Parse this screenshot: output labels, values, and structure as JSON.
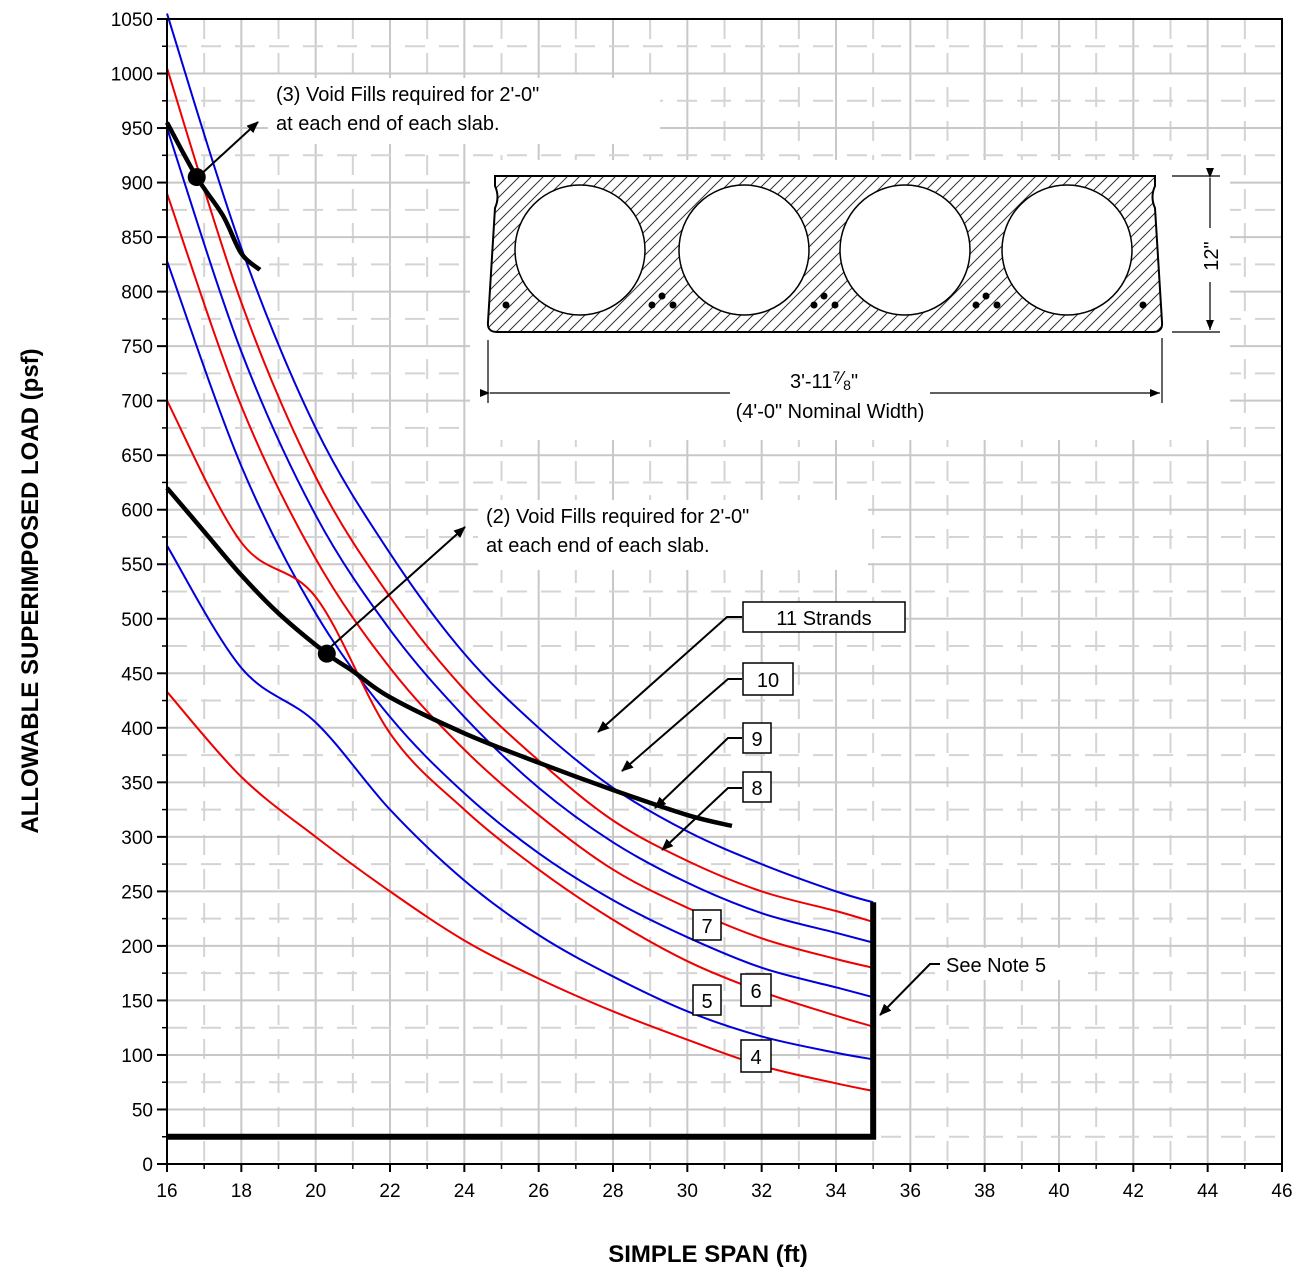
{
  "chart_data": {
    "type": "line",
    "title": "",
    "xlabel": "SIMPLE SPAN (ft)",
    "ylabel": "ALLOWABLE SUPERIMPOSED LOAD (psf)",
    "xlim": [
      16,
      46
    ],
    "ylim": [
      0,
      1050
    ],
    "xticks": [
      16,
      18,
      20,
      22,
      24,
      26,
      28,
      30,
      32,
      34,
      36,
      38,
      40,
      42,
      44,
      46
    ],
    "yticks": [
      0,
      50,
      100,
      150,
      200,
      250,
      300,
      350,
      400,
      450,
      500,
      550,
      600,
      650,
      700,
      750,
      800,
      850,
      900,
      950,
      1000,
      1050
    ],
    "grid": true,
    "colors": {
      "blue": "#0000dd",
      "red": "#ee0000",
      "black": "#000000"
    },
    "series": [
      {
        "name": "11 Strands",
        "color": "#0000dd",
        "label_text": "11 Strands",
        "x": [
          16,
          18,
          20,
          22,
          24,
          26,
          28,
          30,
          32,
          34,
          35
        ],
        "y": [
          1055,
          840,
          675,
          560,
          468,
          400,
          345,
          305,
          275,
          250,
          240
        ]
      },
      {
        "name": "10",
        "color": "#ee0000",
        "label_text": "10",
        "x": [
          16,
          18,
          20,
          22,
          24,
          26,
          28,
          30,
          32,
          34,
          35
        ],
        "y": [
          1005,
          790,
          630,
          520,
          435,
          370,
          315,
          278,
          250,
          232,
          222
        ]
      },
      {
        "name": "9",
        "color": "#0000dd",
        "label_text": "9",
        "x": [
          16,
          18,
          20,
          22,
          24,
          26,
          28,
          30,
          32,
          34,
          35
        ],
        "y": [
          950,
          745,
          595,
          490,
          410,
          345,
          295,
          258,
          230,
          212,
          203
        ]
      },
      {
        "name": "8",
        "color": "#ee0000",
        "label_text": "8",
        "x": [
          16,
          18,
          20,
          22,
          24,
          26,
          28,
          30,
          32,
          34,
          35
        ],
        "y": [
          890,
          695,
          555,
          455,
          380,
          320,
          270,
          235,
          207,
          188,
          180
        ]
      },
      {
        "name": "7",
        "color": "#0000dd",
        "label_text": "7",
        "x": [
          16,
          18,
          20,
          22,
          24,
          26,
          28,
          30,
          32,
          34,
          35
        ],
        "y": [
          828,
          640,
          505,
          410,
          340,
          285,
          242,
          208,
          180,
          162,
          153
        ]
      },
      {
        "name": "6",
        "color": "#ee0000",
        "label_text": "6",
        "x": [
          16,
          18,
          20,
          22,
          24,
          26,
          28,
          30,
          32,
          34,
          35
        ],
        "y": [
          700,
          570,
          520,
          395,
          325,
          270,
          224,
          186,
          158,
          136,
          126
        ]
      },
      {
        "name": "5",
        "color": "#0000dd",
        "label_text": "5",
        "x": [
          16,
          18,
          20,
          22,
          24,
          26,
          28,
          30,
          32,
          34,
          35
        ],
        "y": [
          567,
          455,
          405,
          325,
          260,
          210,
          172,
          140,
          117,
          102,
          96
        ]
      },
      {
        "name": "4",
        "color": "#ee0000",
        "label_text": "4",
        "x": [
          16,
          18,
          20,
          22,
          24,
          26,
          28,
          30,
          32,
          34,
          35
        ],
        "y": [
          433,
          355,
          300,
          250,
          205,
          170,
          140,
          114,
          90,
          74,
          67
        ]
      }
    ],
    "limit_lines": [
      {
        "kind": "three-void-fills",
        "x": [
          16,
          16.8,
          17.5,
          18,
          18.5
        ],
        "y": [
          955,
          905,
          870,
          835,
          820
        ]
      },
      {
        "kind": "two-void-fills",
        "x": [
          16,
          17,
          18,
          19,
          20.3,
          21,
          22,
          24,
          26,
          28,
          30,
          31.2
        ],
        "y": [
          620,
          580,
          540,
          505,
          468,
          452,
          428,
          395,
          368,
          343,
          320,
          310
        ]
      },
      {
        "kind": "span-limit",
        "x": [
          16,
          35,
          35
        ],
        "y": [
          25,
          25,
          240
        ]
      }
    ],
    "markers": [
      {
        "x": 16.8,
        "y": 905
      },
      {
        "x": 20.3,
        "y": 468
      }
    ],
    "annotations": {
      "three_void_line1": "(3) Void Fills required for 2'-0\"",
      "three_void_line2": "at each end of each slab.",
      "two_void_line1": "(2) Void Fills required for 2'-0\"",
      "two_void_line2": "at each end of each slab.",
      "see_note": "See Note 5"
    },
    "section": {
      "height": "12\"",
      "width_main": "3'-11",
      "width_frac_num": "7",
      "width_frac_den": "8",
      "width_inch": "\"",
      "nominal": "(4'-0\" Nominal Width)"
    }
  }
}
